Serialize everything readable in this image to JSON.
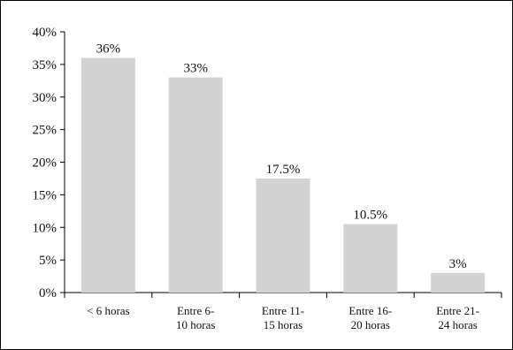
{
  "chart_data": {
    "type": "bar",
    "categories": [
      [
        "< 6 horas"
      ],
      [
        "Entre 6-",
        "10 horas"
      ],
      [
        "Entre 11-",
        "15 horas"
      ],
      [
        "Entre 16-",
        "20 horas"
      ],
      [
        "Entre 21-",
        "24 horas"
      ]
    ],
    "values": [
      36,
      33,
      17.5,
      10.5,
      3
    ],
    "data_labels": [
      "36%",
      "33%",
      "17.5%",
      "10.5%",
      "3%"
    ],
    "yticks": [
      "0%",
      "5%",
      "10%",
      "15%",
      "20%",
      "25%",
      "30%",
      "35%",
      "40%"
    ],
    "ylim": [
      0,
      40
    ],
    "bar_color": "#d3d3d3",
    "grid": false,
    "legend": "none"
  }
}
